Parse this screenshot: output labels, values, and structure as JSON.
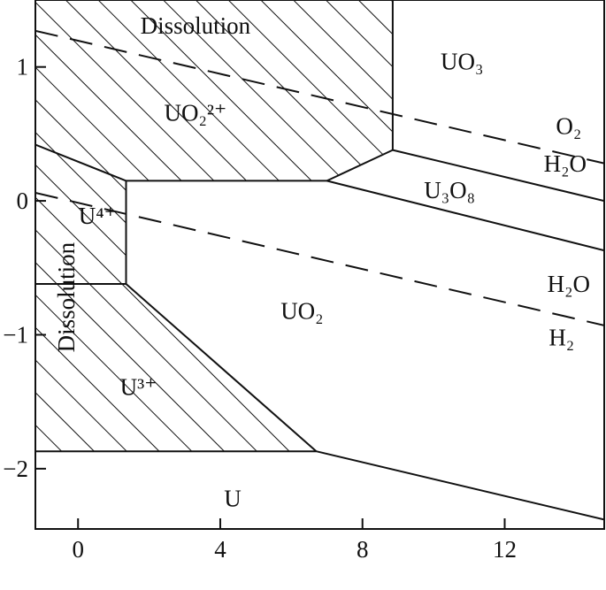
{
  "chart_data": {
    "type": "area",
    "title": "",
    "xlabel": "",
    "ylabel": "",
    "xlim": [
      -1.2,
      14.8
    ],
    "ylim": [
      -2.45,
      1.5
    ],
    "x_ticks": [
      {
        "value": 0,
        "label": "0"
      },
      {
        "value": 4,
        "label": "4"
      },
      {
        "value": 8,
        "label": "8"
      },
      {
        "value": 12,
        "label": "12"
      }
    ],
    "y_ticks": [
      {
        "value": 1,
        "label": "1"
      },
      {
        "value": 0,
        "label": "0"
      },
      {
        "value": -1,
        "label": "−1"
      },
      {
        "value": -2,
        "label": "−2"
      }
    ],
    "grid": false,
    "legend": "none",
    "hatched_regions": [
      {
        "name": "region-uo2-2plus",
        "points": [
          [
            -1.2,
            1.5
          ],
          [
            8.85,
            1.5
          ],
          [
            8.85,
            0.38
          ],
          [
            7.0,
            0.15
          ],
          [
            1.35,
            0.15
          ],
          [
            -1.2,
            0.42
          ]
        ]
      },
      {
        "name": "region-u4plus",
        "points": [
          [
            -1.2,
            0.42
          ],
          [
            1.35,
            0.15
          ],
          [
            1.35,
            -0.62
          ],
          [
            -1.2,
            -0.62
          ]
        ]
      },
      {
        "name": "region-u3plus",
        "points": [
          [
            -1.2,
            -0.62
          ],
          [
            1.35,
            -0.62
          ],
          [
            6.7,
            -1.87
          ],
          [
            -1.2,
            -1.87
          ]
        ]
      }
    ],
    "boundaries": [
      {
        "name": "boundary-uo2-2plus-u4plus",
        "points": [
          [
            -1.2,
            0.42
          ],
          [
            1.35,
            0.15
          ]
        ]
      },
      {
        "name": "boundary-u4plus-uo2",
        "points": [
          [
            1.35,
            0.15
          ],
          [
            1.35,
            -0.62
          ]
        ]
      },
      {
        "name": "boundary-u4plus-u3plus",
        "points": [
          [
            -1.2,
            -0.62
          ],
          [
            1.35,
            -0.62
          ]
        ]
      },
      {
        "name": "boundary-uo2-2plus-uo2",
        "points": [
          [
            1.35,
            0.15
          ],
          [
            7.0,
            0.15
          ]
        ]
      },
      {
        "name": "boundary-uo2-2plus-u3o8",
        "points": [
          [
            7.0,
            0.15
          ],
          [
            8.85,
            0.38
          ]
        ]
      },
      {
        "name": "boundary-uo2-2plus-uo3",
        "points": [
          [
            8.85,
            0.38
          ],
          [
            8.85,
            1.5
          ]
        ]
      },
      {
        "name": "boundary-uo3-u3o8",
        "points": [
          [
            8.85,
            0.38
          ],
          [
            14.8,
            0.0
          ]
        ]
      },
      {
        "name": "boundary-u3o8-uo2",
        "points": [
          [
            7.0,
            0.15
          ],
          [
            14.8,
            -0.37
          ]
        ]
      },
      {
        "name": "boundary-u3plus-uo2",
        "points": [
          [
            1.35,
            -0.62
          ],
          [
            6.7,
            -1.87
          ]
        ]
      },
      {
        "name": "boundary-u3plus-u",
        "points": [
          [
            -1.2,
            -1.87
          ],
          [
            6.7,
            -1.87
          ]
        ]
      },
      {
        "name": "boundary-uo2-u",
        "points": [
          [
            6.7,
            -1.87
          ],
          [
            14.8,
            -2.38
          ]
        ]
      }
    ],
    "dashed_lines": [
      {
        "name": "line-o2-h2o",
        "points": [
          [
            -1.2,
            1.27
          ],
          [
            14.8,
            0.28
          ]
        ]
      },
      {
        "name": "line-h2o-h2",
        "points": [
          [
            -1.2,
            0.06
          ],
          [
            14.8,
            -0.93
          ]
        ]
      }
    ],
    "region_labels": [
      {
        "name": "label-dissolution-top",
        "text": "Dissolution",
        "x": 3.3,
        "y": 1.25,
        "size": "large"
      },
      {
        "name": "label-dissolution-left",
        "text": "Dissolution",
        "x": -0.1,
        "y": -0.72,
        "size": "large",
        "rotate": -90
      },
      {
        "name": "label-uo3",
        "text": "UO₃",
        "x": 10.8,
        "y": 0.98,
        "size": "large"
      },
      {
        "name": "label-uo2-2plus",
        "text": "UO₂²⁺",
        "x": 3.3,
        "y": 0.6,
        "size": "large"
      },
      {
        "name": "label-o2",
        "text": "O₂",
        "x": 13.8,
        "y": 0.5,
        "size": "large"
      },
      {
        "name": "label-h2o-upper",
        "text": "H₂O",
        "x": 13.7,
        "y": 0.22,
        "size": "large"
      },
      {
        "name": "label-u3o8",
        "text": "U₃O₈",
        "x": 10.45,
        "y": 0.02,
        "size": "large"
      },
      {
        "name": "label-u4plus",
        "text": "U⁴⁺",
        "x": 0.55,
        "y": -0.17,
        "size": "large"
      },
      {
        "name": "label-h2o-lower",
        "text": "H₂O",
        "x": 13.8,
        "y": -0.68,
        "size": "large"
      },
      {
        "name": "label-uo2",
        "text": "UO₂",
        "x": 6.3,
        "y": -0.88,
        "size": "large"
      },
      {
        "name": "label-h2",
        "text": "H₂",
        "x": 13.6,
        "y": -1.08,
        "size": "large"
      },
      {
        "name": "label-u3plus",
        "text": "U³⁺",
        "x": 1.7,
        "y": -1.45,
        "size": "large"
      },
      {
        "name": "label-u",
        "text": "U",
        "x": 4.35,
        "y": -2.28,
        "size": "large"
      }
    ]
  }
}
